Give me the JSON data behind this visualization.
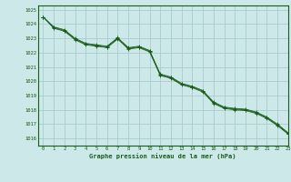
{
  "title": "Graphe pression niveau de la mer (hPa)",
  "bg_color": "#cce8e8",
  "grid_color": "#aacccc",
  "line_color": "#1a5c1a",
  "marker_color": "#1a5c1a",
  "xlim": [
    -0.5,
    23
  ],
  "ylim": [
    1015.5,
    1025.3
  ],
  "yticks": [
    1016,
    1017,
    1018,
    1019,
    1020,
    1021,
    1022,
    1023,
    1024,
    1025
  ],
  "xticks": [
    0,
    1,
    2,
    3,
    4,
    5,
    6,
    7,
    8,
    9,
    10,
    11,
    12,
    13,
    14,
    15,
    16,
    17,
    18,
    19,
    20,
    21,
    22,
    23
  ],
  "series": [
    [
      1024.5,
      1023.8,
      1023.6,
      1023.0,
      1022.65,
      1022.55,
      1022.45,
      1023.05,
      1022.35,
      1022.45,
      1022.15,
      1020.5,
      1020.3,
      1019.85,
      1019.65,
      1019.35,
      1018.55,
      1018.2,
      1018.1,
      1018.05,
      1017.85,
      1017.5,
      1017.0,
      1016.4
    ],
    [
      1024.5,
      1023.75,
      1023.55,
      1022.95,
      1022.6,
      1022.5,
      1022.4,
      1023.0,
      1022.3,
      1022.4,
      1022.1,
      1020.45,
      1020.25,
      1019.8,
      1019.6,
      1019.3,
      1018.5,
      1018.15,
      1018.05,
      1018.0,
      1017.8,
      1017.45,
      1016.95,
      1016.35
    ],
    [
      1024.5,
      1023.7,
      1023.5,
      1022.9,
      1022.55,
      1022.45,
      1022.35,
      1022.95,
      1022.25,
      1022.35,
      1022.05,
      1020.4,
      1020.2,
      1019.75,
      1019.55,
      1019.25,
      1018.45,
      1018.1,
      1018.0,
      1017.95,
      1017.75,
      1017.4,
      1016.9,
      1016.3
    ]
  ]
}
